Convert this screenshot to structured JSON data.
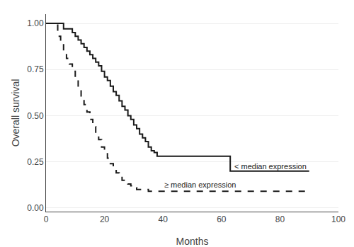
{
  "chart_data": {
    "type": "step",
    "title": "",
    "xlabel": "Months",
    "ylabel": "Overall survival",
    "xlim": [
      0,
      100
    ],
    "ylim": [
      -0.02,
      1.05
    ],
    "xticks": [
      0,
      20,
      40,
      60,
      80,
      100
    ],
    "yticks": [
      {
        "value": 0.0,
        "label": "0.00"
      },
      {
        "value": 0.25,
        "label": "0.25"
      },
      {
        "value": 0.5,
        "label": "0.50"
      },
      {
        "value": 0.75,
        "label": "0.75"
      },
      {
        "value": 1.0,
        "label": "1.00"
      }
    ],
    "grid": "y",
    "series": [
      {
        "color": "#1a1a1a",
        "line_style": "solid",
        "x": [
          0,
          5,
          6,
          8,
          9,
          10,
          11,
          12,
          13,
          14,
          15,
          16,
          17,
          18,
          19,
          20,
          21,
          22,
          23,
          24,
          25,
          26,
          27,
          28,
          29,
          30,
          31,
          32,
          33,
          34,
          35,
          36,
          37,
          38,
          40,
          42,
          44,
          46,
          63,
          90
        ],
        "values": [
          1.0,
          1.0,
          0.97,
          0.97,
          0.95,
          0.93,
          0.91,
          0.89,
          0.87,
          0.85,
          0.83,
          0.81,
          0.79,
          0.77,
          0.74,
          0.71,
          0.69,
          0.66,
          0.63,
          0.61,
          0.58,
          0.55,
          0.53,
          0.5,
          0.48,
          0.45,
          0.43,
          0.4,
          0.38,
          0.36,
          0.33,
          0.31,
          0.3,
          0.28,
          0.28,
          0.28,
          0.28,
          0.28,
          0.2,
          0.2
        ]
      },
      {
        "color": "#1a1a1a",
        "line_style": "dashed",
        "x": [
          0,
          3,
          4,
          5,
          6,
          7,
          8,
          9,
          10,
          11,
          12,
          13,
          14,
          15,
          16,
          17,
          18,
          19,
          20,
          21,
          22,
          23,
          24,
          25,
          26,
          27,
          28,
          29,
          30,
          31,
          33,
          35,
          37,
          39,
          90
        ],
        "values": [
          1.0,
          1.0,
          0.93,
          0.89,
          0.85,
          0.81,
          0.78,
          0.74,
          0.7,
          0.65,
          0.6,
          0.56,
          0.52,
          0.48,
          0.44,
          0.4,
          0.37,
          0.33,
          0.3,
          0.27,
          0.24,
          0.21,
          0.19,
          0.17,
          0.15,
          0.14,
          0.13,
          0.12,
          0.11,
          0.1,
          0.1,
          0.09,
          0.09,
          0.09,
          0.09
        ]
      }
    ],
    "annotations": [
      {
        "text": "< median expression",
        "x": 64,
        "y": 0.225,
        "color": "#1a1a1a"
      },
      {
        "text": "≥ median expression",
        "x": 40,
        "y": 0.125,
        "color": "#1a1a1a"
      }
    ]
  }
}
